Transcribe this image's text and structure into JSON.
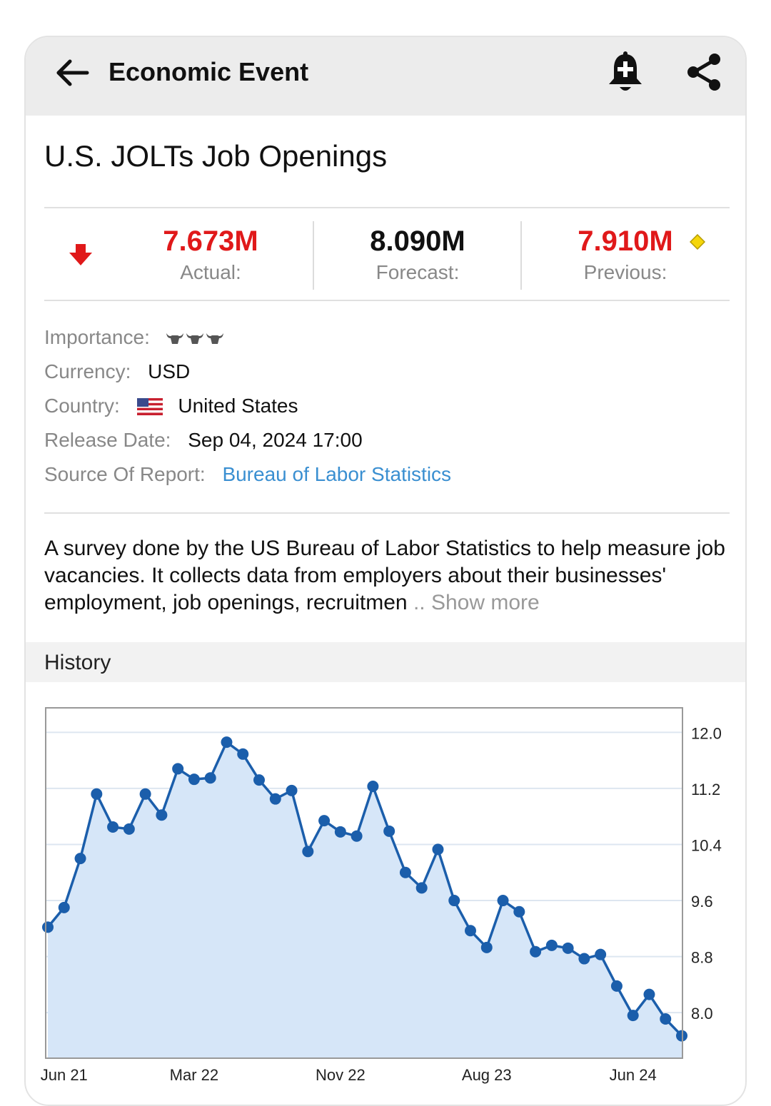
{
  "header": {
    "title": "Economic Event",
    "icons": {
      "back": "arrow-left-icon",
      "alert": "bell-plus-icon",
      "share": "share-icon"
    }
  },
  "event": {
    "title": "U.S. JOLTs Job Openings"
  },
  "metrics": {
    "actual": {
      "value": "7.673M",
      "label": "Actual:",
      "color": "#e0191a"
    },
    "forecast": {
      "value": "8.090M",
      "label": "Forecast:",
      "color": "#111111"
    },
    "previous": {
      "value": "7.910M",
      "label": "Previous:",
      "color": "#e0191a"
    },
    "trend_icon": "down-arrow-icon",
    "revised_icon": "diamond-icon"
  },
  "details": {
    "importance": {
      "label": "Importance:",
      "level": 3
    },
    "currency": {
      "label": "Currency:",
      "value": "USD"
    },
    "country": {
      "label": "Country:",
      "value": "United States",
      "flag": "us-flag-icon"
    },
    "release_date": {
      "label": "Release Date:",
      "value": "Sep 04, 2024 17:00"
    },
    "source": {
      "label": "Source Of Report:",
      "value": "Bureau of Labor Statistics"
    }
  },
  "description": {
    "text": "A survey done by the US Bureau of Labor Statistics to help measure job vacancies. It collects data from employers about their businesses' employment, job openings, recruitmen",
    "ellipsis": "..",
    "show_more": "Show more"
  },
  "history": {
    "title": "History"
  },
  "chart_data": {
    "type": "area",
    "title": "",
    "xlabel": "",
    "ylabel": "",
    "x_tick_labels": [
      "Jun 21",
      "Mar 22",
      "Nov 22",
      "Aug 23",
      "Jun 24"
    ],
    "x_tick_indices": [
      1,
      9,
      18,
      27,
      36
    ],
    "y_ticks": [
      8.0,
      8.8,
      9.6,
      10.4,
      11.2,
      12.0
    ],
    "y_tick_labels": [
      "8.0",
      "8.8",
      "9.6",
      "10.4",
      "11.2",
      "12.0"
    ],
    "ylim": [
      7.35,
      12.35
    ],
    "grid": true,
    "axis_side": "right",
    "colors": {
      "line": "#1b5eab",
      "fill": "#d6e6f8"
    },
    "series": [
      {
        "values": [
          9.22,
          9.5,
          10.2,
          11.12,
          10.65,
          10.62,
          11.12,
          10.82,
          11.48,
          11.33,
          11.35,
          11.86,
          11.69,
          11.32,
          11.05,
          11.17,
          10.3,
          10.74,
          10.58,
          10.52,
          11.23,
          10.59,
          10.0,
          9.78,
          10.33,
          9.6,
          9.17,
          8.93,
          9.6,
          9.44,
          8.87,
          8.96,
          8.92,
          8.77,
          8.83,
          8.38,
          7.96,
          8.26,
          7.91,
          7.67
        ]
      }
    ]
  }
}
